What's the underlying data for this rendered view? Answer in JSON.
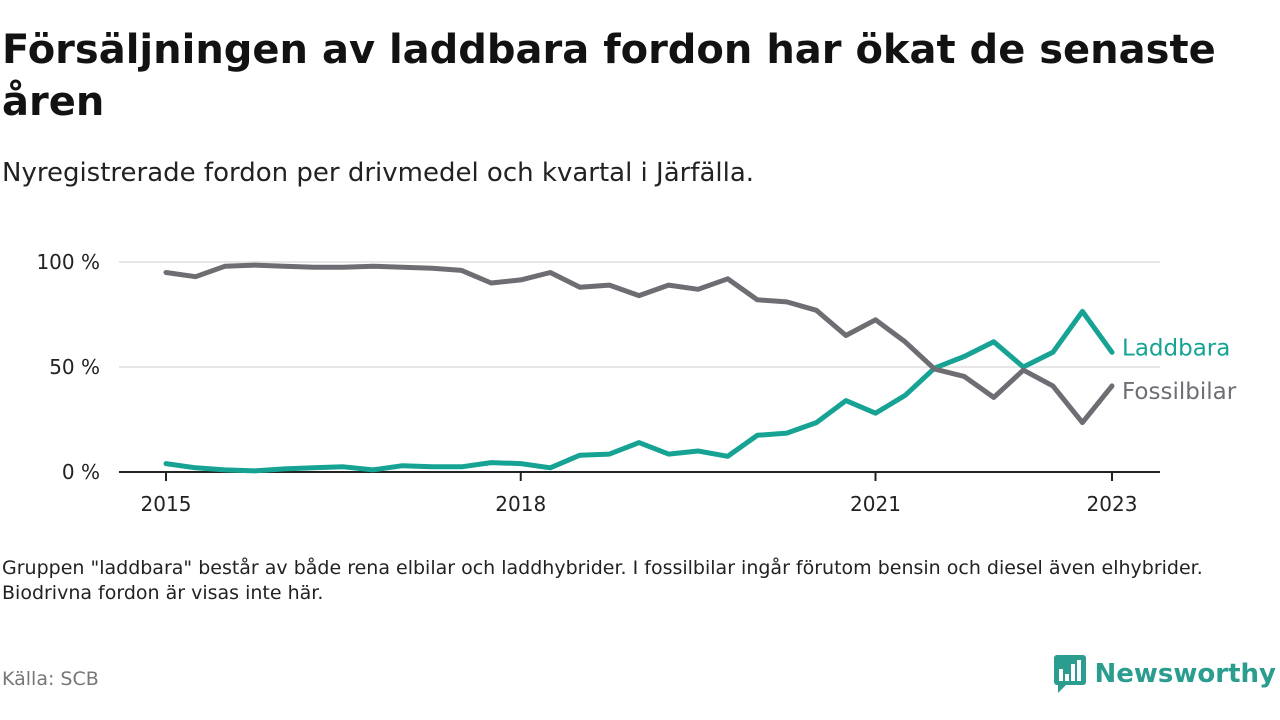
{
  "title": "Försäljningen av laddbara fordon har ökat de senaste åren",
  "subtitle": "Nyregistrerade fordon per drivmedel och kvartal i Järfälla.",
  "note": "Gruppen \"laddbara\" består av både rena elbilar och laddhybrider. I fossilbilar ingår förutom bensin och diesel även elhybrider. Biodrivna fordon är visas inte här.",
  "source": "Källa: SCB",
  "brand": "Newsworthy",
  "colors": {
    "laddbara": "#16a394",
    "fossil": "#6e6d73",
    "grid": "#dddddd",
    "axis": "#222222",
    "brand": "#2a9d8f"
  },
  "chart_data": {
    "type": "line",
    "title": "Försäljningen av laddbara fordon har ökat de senaste åren",
    "xlabel": "",
    "ylabel": "",
    "ylim": [
      0,
      100
    ],
    "y_ticks": [
      0,
      50,
      100
    ],
    "y_tick_labels": [
      "0 %",
      "50 %",
      "100 %"
    ],
    "x_ticks": [
      2015,
      2018,
      2021,
      2023
    ],
    "x_tick_labels": [
      "2015",
      "2018",
      "2021",
      "2023"
    ],
    "x": [
      2015.0,
      2015.25,
      2015.5,
      2015.75,
      2016.0,
      2016.25,
      2016.5,
      2016.75,
      2017.0,
      2017.25,
      2017.5,
      2017.75,
      2018.0,
      2018.25,
      2018.5,
      2018.75,
      2019.0,
      2019.25,
      2019.5,
      2019.75,
      2020.0,
      2020.25,
      2020.5,
      2020.75,
      2021.0,
      2021.25,
      2021.5,
      2021.75,
      2022.0,
      2022.25,
      2022.5,
      2022.75,
      2023.0
    ],
    "series": [
      {
        "name": "Laddbara",
        "label": "Laddbara",
        "values": [
          4,
          2,
          1,
          0.5,
          1.5,
          2,
          2.5,
          1,
          3,
          2.5,
          2.5,
          4.5,
          4,
          2,
          8,
          8.5,
          14,
          8.5,
          10,
          7.5,
          17.5,
          18.5,
          23.5,
          34,
          28,
          36.5,
          49.5,
          55,
          62,
          50,
          57,
          76.5,
          57
        ]
      },
      {
        "name": "Fossilbilar",
        "label": "Fossilbilar",
        "values": [
          95,
          93,
          98,
          98.5,
          98,
          97.5,
          97.5,
          98,
          97.5,
          97,
          96,
          90,
          91.5,
          95,
          88,
          89,
          84,
          89,
          87,
          92,
          82,
          81,
          77,
          65,
          72.5,
          62,
          49,
          45.5,
          35.5,
          48.5,
          41,
          23.5,
          41
        ]
      }
    ]
  }
}
